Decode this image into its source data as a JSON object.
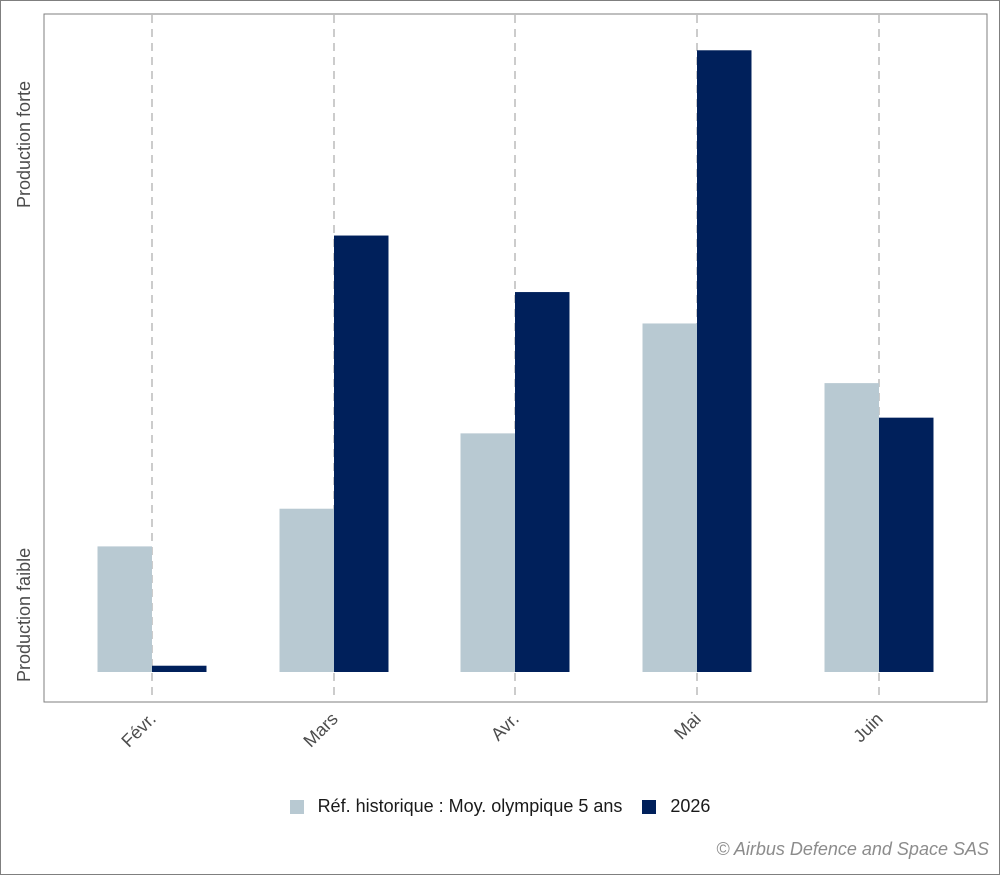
{
  "chart_data": {
    "type": "bar",
    "categories": [
      "Févr.",
      "Mars",
      "Avr.",
      "Mai",
      "Juin"
    ],
    "series": [
      {
        "name": "Réf. historique : Moy. olympique 5 ans",
        "color": "#b8c9d2",
        "values": [
          20,
          26,
          38,
          55.5,
          46
        ]
      },
      {
        "name": "2026",
        "color": "#00205b",
        "values": [
          1,
          69.5,
          60.5,
          99,
          40.5
        ]
      }
    ],
    "ylim": [
      0,
      100
    ],
    "y_scale_labels": {
      "low": "Production faible",
      "high": "Production forte"
    },
    "grid": {
      "vertical_dashed": true,
      "horizontal": false
    },
    "legend_position": "bottom"
  },
  "legend": {
    "items": [
      {
        "label": "Réf. historique : Moy. olympique 5 ans",
        "color": "#b8c9d2"
      },
      {
        "label": "2026",
        "color": "#00205b"
      }
    ]
  },
  "credit": "© Airbus Defence and Space SAS"
}
